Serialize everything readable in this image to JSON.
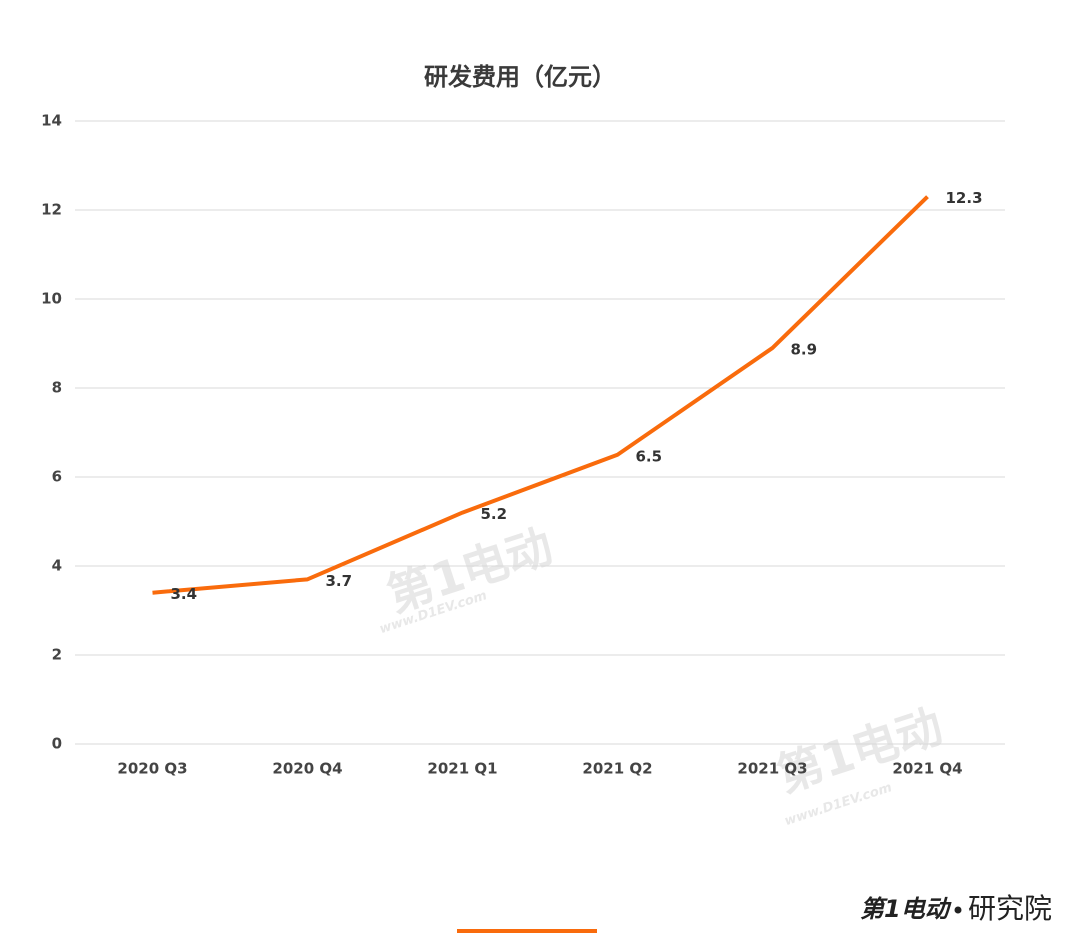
{
  "chart_data": {
    "type": "line",
    "title": "研发费用（亿元）",
    "categories": [
      "2020 Q3",
      "2020 Q4",
      "2021 Q1",
      "2021 Q2",
      "2021 Q3",
      "2021 Q4"
    ],
    "values": [
      3.4,
      3.7,
      5.2,
      6.5,
      8.9,
      12.3
    ],
    "color": "#f96b0c",
    "ylim": [
      0,
      14
    ],
    "yticks": [
      0,
      2,
      4,
      6,
      8,
      10,
      12,
      14
    ],
    "grid": true
  },
  "watermark": {
    "brand": "第1电动",
    "url": "www.D1EV.com"
  },
  "footer_logo": {
    "brand": "第1电动",
    "suffix": "研究院"
  }
}
